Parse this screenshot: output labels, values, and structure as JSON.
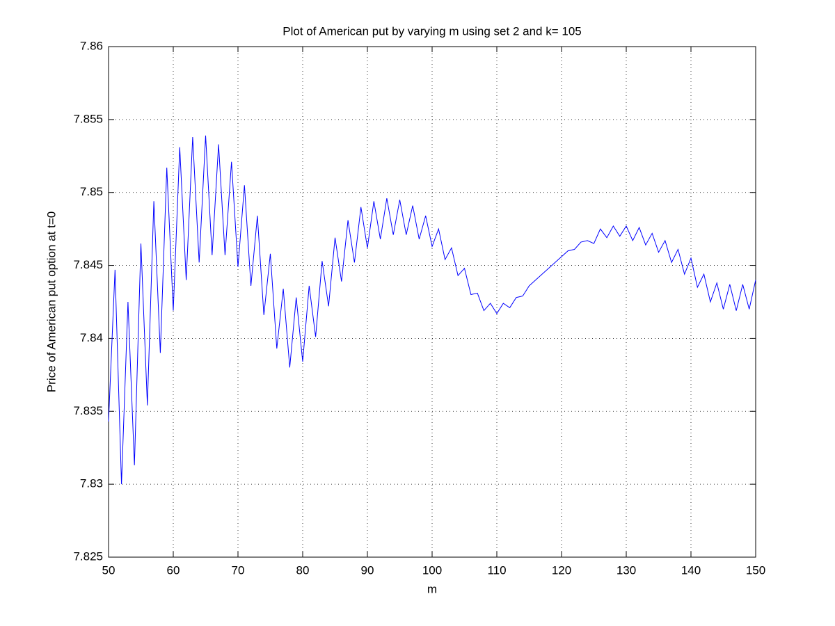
{
  "chart_data": {
    "type": "line",
    "title": "Plot of American put by varying m using set 2 and k= 105",
    "x_label": "m",
    "y_label": "Price of American put option at t=0",
    "x": [
      50,
      51,
      52,
      53,
      54,
      55,
      56,
      57,
      58,
      59,
      60,
      61,
      62,
      63,
      64,
      65,
      66,
      67,
      68,
      69,
      70,
      71,
      72,
      73,
      74,
      75,
      76,
      77,
      78,
      79,
      80,
      81,
      82,
      83,
      84,
      85,
      86,
      87,
      88,
      89,
      90,
      91,
      92,
      93,
      94,
      95,
      96,
      97,
      98,
      99,
      100,
      101,
      102,
      103,
      104,
      105,
      106,
      107,
      108,
      109,
      110,
      111,
      112,
      113,
      114,
      115,
      116,
      117,
      118,
      119,
      120,
      121,
      122,
      123,
      124,
      125,
      126,
      127,
      128,
      129,
      130,
      131,
      132,
      133,
      134,
      135,
      136,
      137,
      138,
      139,
      140,
      141,
      142,
      143,
      144,
      145,
      146,
      147,
      148,
      149,
      150
    ],
    "values": [
      7.8343,
      7.8447,
      7.83,
      7.8425,
      7.8313,
      7.8465,
      7.8354,
      7.8494,
      7.839,
      7.8517,
      7.8419,
      7.8531,
      7.844,
      7.8538,
      7.8452,
      7.8539,
      7.8457,
      7.8533,
      7.8457,
      7.8521,
      7.8449,
      7.8505,
      7.8436,
      7.8484,
      7.8416,
      7.8458,
      7.8393,
      7.8434,
      7.838,
      7.8428,
      7.8384,
      7.8436,
      7.8401,
      7.8453,
      7.8422,
      7.8469,
      7.8439,
      7.8481,
      7.8452,
      7.849,
      7.8462,
      7.8494,
      7.8468,
      7.8496,
      7.8471,
      7.8495,
      7.8471,
      7.8491,
      7.8468,
      7.8484,
      7.8463,
      7.8475,
      7.8454,
      7.8462,
      7.8443,
      7.8448,
      7.843,
      7.8431,
      7.8419,
      7.8424,
      7.8417,
      7.8424,
      7.8421,
      7.8428,
      7.8429,
      7.8436,
      7.844,
      7.8444,
      7.8448,
      7.8452,
      7.8456,
      7.846,
      7.8461,
      7.8466,
      7.8467,
      7.8465,
      7.8475,
      7.8469,
      7.8477,
      7.847,
      7.8477,
      7.8467,
      7.8476,
      7.8464,
      7.8472,
      7.8459,
      7.8467,
      7.8452,
      7.8461,
      7.8444,
      7.8455,
      7.8435,
      7.8444,
      7.8425,
      7.8438,
      7.842,
      7.8437,
      7.8419,
      7.8437,
      7.842,
      7.844
    ],
    "color": "#0000ff",
    "xlim": [
      50,
      150
    ],
    "xticks": [
      50,
      60,
      70,
      80,
      90,
      100,
      110,
      120,
      130,
      140,
      150
    ],
    "ylim": [
      7.825,
      7.86
    ],
    "yticks": [
      7.825,
      7.83,
      7.835,
      7.84,
      7.845,
      7.85,
      7.855,
      7.86
    ],
    "grid": true
  }
}
